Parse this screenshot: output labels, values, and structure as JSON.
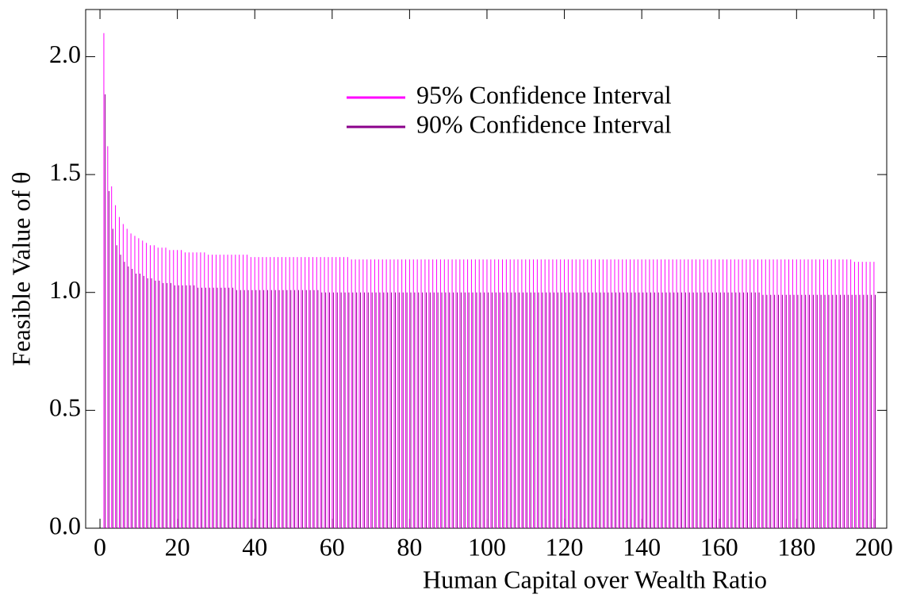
{
  "chart_data": {
    "type": "spike",
    "x_label": "Human Capital over Wealth Ratio",
    "y_label": "Feasible Value of  θ",
    "x": [
      1,
      2,
      3,
      4,
      5,
      6,
      7,
      8,
      9,
      10,
      11,
      12,
      13,
      14,
      15,
      16,
      17,
      18,
      19,
      20,
      21,
      22,
      23,
      24,
      25,
      26,
      27,
      28,
      29,
      30,
      31,
      32,
      33,
      34,
      35,
      36,
      37,
      38,
      39,
      40,
      41,
      42,
      43,
      44,
      45,
      46,
      47,
      48,
      49,
      50,
      51,
      52,
      53,
      54,
      55,
      56,
      57,
      58,
      59,
      60,
      61,
      62,
      63,
      64,
      65,
      66,
      67,
      68,
      69,
      70,
      71,
      72,
      73,
      74,
      75,
      76,
      77,
      78,
      79,
      80,
      81,
      82,
      83,
      84,
      85,
      86,
      87,
      88,
      89,
      90,
      91,
      92,
      93,
      94,
      95,
      96,
      97,
      98,
      99,
      100,
      101,
      102,
      103,
      104,
      105,
      106,
      107,
      108,
      109,
      110,
      111,
      112,
      113,
      114,
      115,
      116,
      117,
      118,
      119,
      120,
      121,
      122,
      123,
      124,
      125,
      126,
      127,
      128,
      129,
      130,
      131,
      132,
      133,
      134,
      135,
      136,
      137,
      138,
      139,
      140,
      141,
      142,
      143,
      144,
      145,
      146,
      147,
      148,
      149,
      150,
      151,
      152,
      153,
      154,
      155,
      156,
      157,
      158,
      159,
      160,
      161,
      162,
      163,
      164,
      165,
      166,
      167,
      168,
      169,
      170,
      171,
      172,
      173,
      174,
      175,
      176,
      177,
      178,
      179,
      180,
      181,
      182,
      183,
      184,
      185,
      186,
      187,
      188,
      189,
      190,
      191,
      192,
      193,
      194,
      195,
      196,
      197,
      198,
      199,
      200
    ],
    "series": [
      {
        "name": "95% Confidence Interval",
        "color": "#ff00ff",
        "values": [
          2.1,
          1.62,
          1.45,
          1.37,
          1.32,
          1.29,
          1.27,
          1.25,
          1.24,
          1.23,
          1.22,
          1.21,
          1.2,
          1.2,
          1.19,
          1.19,
          1.19,
          1.18,
          1.18,
          1.18,
          1.18,
          1.17,
          1.17,
          1.17,
          1.17,
          1.17,
          1.17,
          1.16,
          1.16,
          1.16,
          1.16,
          1.16,
          1.16,
          1.16,
          1.16,
          1.16,
          1.16,
          1.16,
          1.15,
          1.15,
          1.15,
          1.15,
          1.15,
          1.15,
          1.15,
          1.15,
          1.15,
          1.15,
          1.15,
          1.15,
          1.15,
          1.15,
          1.15,
          1.15,
          1.15,
          1.15,
          1.15,
          1.15,
          1.15,
          1.15,
          1.15,
          1.15,
          1.15,
          1.15,
          1.14,
          1.14,
          1.14,
          1.14,
          1.14,
          1.14,
          1.14,
          1.14,
          1.14,
          1.14,
          1.14,
          1.14,
          1.14,
          1.14,
          1.14,
          1.14,
          1.14,
          1.14,
          1.14,
          1.14,
          1.14,
          1.14,
          1.14,
          1.14,
          1.14,
          1.14,
          1.14,
          1.14,
          1.14,
          1.14,
          1.14,
          1.14,
          1.14,
          1.14,
          1.14,
          1.14,
          1.14,
          1.14,
          1.14,
          1.14,
          1.14,
          1.14,
          1.14,
          1.14,
          1.14,
          1.14,
          1.14,
          1.14,
          1.14,
          1.14,
          1.14,
          1.14,
          1.14,
          1.14,
          1.14,
          1.14,
          1.14,
          1.14,
          1.14,
          1.14,
          1.14,
          1.14,
          1.14,
          1.14,
          1.14,
          1.14,
          1.14,
          1.14,
          1.14,
          1.14,
          1.14,
          1.14,
          1.14,
          1.14,
          1.14,
          1.14,
          1.14,
          1.14,
          1.14,
          1.14,
          1.14,
          1.14,
          1.14,
          1.14,
          1.14,
          1.14,
          1.14,
          1.14,
          1.14,
          1.14,
          1.14,
          1.14,
          1.14,
          1.14,
          1.14,
          1.14,
          1.14,
          1.14,
          1.14,
          1.14,
          1.14,
          1.14,
          1.14,
          1.14,
          1.14,
          1.14,
          1.14,
          1.14,
          1.14,
          1.14,
          1.14,
          1.14,
          1.14,
          1.14,
          1.14,
          1.14,
          1.14,
          1.14,
          1.14,
          1.14,
          1.14,
          1.14,
          1.14,
          1.14,
          1.14,
          1.14,
          1.14,
          1.14,
          1.14,
          1.14,
          1.13,
          1.13,
          1.13,
          1.13,
          1.13,
          1.13
        ]
      },
      {
        "name": "90% Confidence Interval",
        "color": "#8b008b",
        "values": [
          1.84,
          1.43,
          1.27,
          1.2,
          1.16,
          1.13,
          1.11,
          1.1,
          1.08,
          1.08,
          1.07,
          1.06,
          1.06,
          1.05,
          1.05,
          1.04,
          1.04,
          1.04,
          1.03,
          1.03,
          1.03,
          1.03,
          1.03,
          1.03,
          1.02,
          1.02,
          1.02,
          1.02,
          1.02,
          1.02,
          1.02,
          1.02,
          1.02,
          1.02,
          1.01,
          1.01,
          1.01,
          1.01,
          1.01,
          1.01,
          1.01,
          1.01,
          1.01,
          1.01,
          1.01,
          1.01,
          1.01,
          1.01,
          1.01,
          1.01,
          1.01,
          1.01,
          1.01,
          1.01,
          1.01,
          1.01,
          1.0,
          1.0,
          1.0,
          1.0,
          1.0,
          1.0,
          1.0,
          1.0,
          1.0,
          1.0,
          1.0,
          1.0,
          1.0,
          1.0,
          1.0,
          1.0,
          1.0,
          1.0,
          1.0,
          1.0,
          1.0,
          1.0,
          1.0,
          1.0,
          1.0,
          1.0,
          1.0,
          1.0,
          1.0,
          1.0,
          1.0,
          1.0,
          1.0,
          1.0,
          1.0,
          1.0,
          1.0,
          1.0,
          1.0,
          1.0,
          1.0,
          1.0,
          1.0,
          1.0,
          1.0,
          1.0,
          1.0,
          1.0,
          1.0,
          1.0,
          1.0,
          1.0,
          1.0,
          1.0,
          1.0,
          1.0,
          1.0,
          1.0,
          1.0,
          1.0,
          1.0,
          1.0,
          1.0,
          1.0,
          1.0,
          1.0,
          1.0,
          1.0,
          1.0,
          1.0,
          1.0,
          1.0,
          1.0,
          1.0,
          1.0,
          1.0,
          1.0,
          1.0,
          1.0,
          1.0,
          1.0,
          1.0,
          1.0,
          1.0,
          1.0,
          1.0,
          1.0,
          1.0,
          1.0,
          1.0,
          1.0,
          1.0,
          1.0,
          1.0,
          1.0,
          1.0,
          1.0,
          1.0,
          1.0,
          1.0,
          1.0,
          1.0,
          1.0,
          1.0,
          1.0,
          1.0,
          1.0,
          1.0,
          1.0,
          1.0,
          1.0,
          1.0,
          1.0,
          1.0,
          0.99,
          0.99,
          0.99,
          0.99,
          0.99,
          0.99,
          0.99,
          0.99,
          0.99,
          0.99,
          0.99,
          0.99,
          0.99,
          0.99,
          0.99,
          0.99,
          0.99,
          0.99,
          0.99,
          0.99,
          0.99,
          0.99,
          0.99,
          0.99,
          0.99,
          0.99,
          0.99,
          0.99,
          0.99,
          0.99
        ]
      }
    ],
    "xlim": [
      -3.7,
      203.3
    ],
    "ylim": [
      0,
      2.2
    ],
    "xticks": [
      0,
      20,
      40,
      60,
      80,
      100,
      120,
      140,
      160,
      180,
      200
    ],
    "yticks": [
      {
        "value": 0,
        "label": "0.0"
      },
      0.5,
      {
        "value": 1,
        "label": "1.0"
      },
      1.5,
      {
        "value": 2,
        "label": "2.0"
      }
    ],
    "legend": "upper right"
  }
}
